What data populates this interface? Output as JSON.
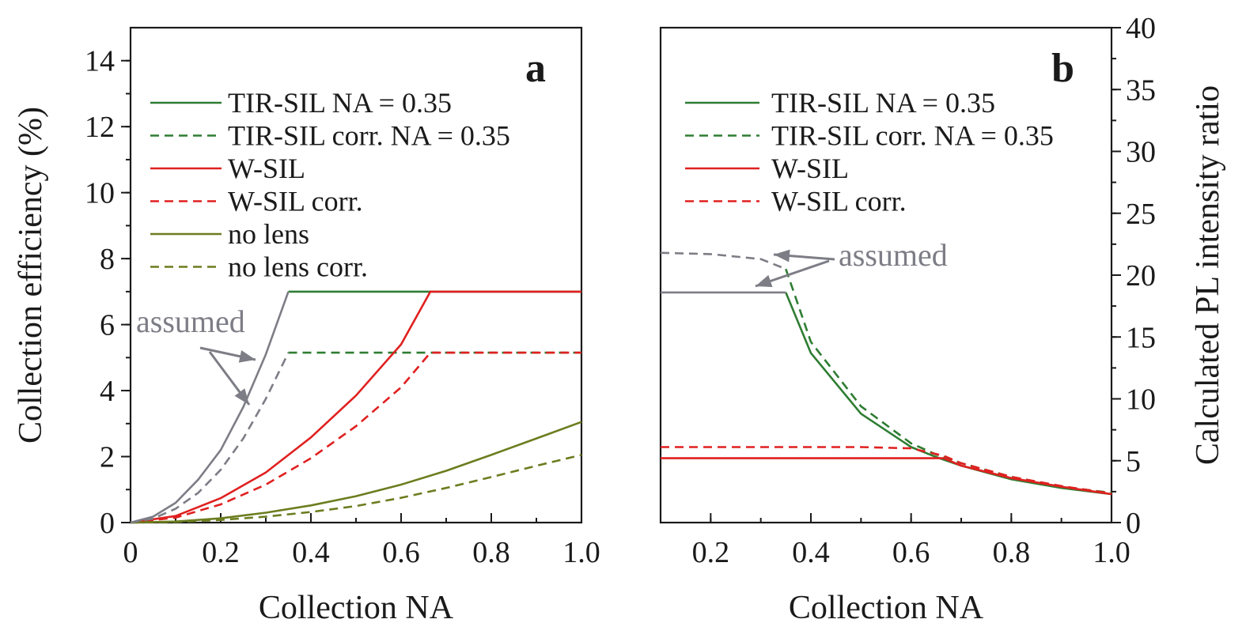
{
  "chart_data": [
    {
      "type": "line",
      "panel_tag": "a",
      "xlabel": "Collection NA",
      "ylabel": "Collection efficiency (%)",
      "xlim": [
        0,
        1.0
      ],
      "ylim": [
        0,
        15
      ],
      "xticks": [
        "0",
        "0.2",
        "0.4",
        "0.6",
        "0.8",
        "1.0"
      ],
      "xtick_values": [
        0,
        0.2,
        0.4,
        0.6,
        0.8,
        1.0
      ],
      "yticks": [
        "0",
        "2",
        "4",
        "6",
        "8",
        "10",
        "12",
        "14"
      ],
      "ytick_values": [
        0,
        2,
        4,
        6,
        8,
        10,
        12,
        14
      ],
      "legend_position": "top-left",
      "annotation": "assumed",
      "series": [
        {
          "name": "TIR-SIL NA = 0.35",
          "color": "#2e7d32",
          "dash": false,
          "in_legend": true,
          "x": [
            0.35,
            1.0
          ],
          "y": [
            7.0,
            7.0
          ]
        },
        {
          "name": "TIR-SIL corr. NA = 0.35",
          "color": "#2e7d32",
          "dash": true,
          "in_legend": true,
          "x": [
            0.35,
            1.0
          ],
          "y": [
            5.15,
            5.15
          ]
        },
        {
          "name": "W-SIL",
          "color": "#e02020",
          "dash": false,
          "in_legend": true,
          "x": [
            0,
            0.1,
            0.2,
            0.3,
            0.4,
            0.5,
            0.6,
            0.665,
            0.7,
            0.8,
            0.9,
            1.0
          ],
          "y": [
            0,
            0.2,
            0.74,
            1.52,
            2.58,
            3.85,
            5.4,
            7.0,
            7.0,
            7.0,
            7.0,
            7.0
          ]
        },
        {
          "name": "W-SIL corr.",
          "color": "#e02020",
          "dash": true,
          "in_legend": true,
          "x": [
            0,
            0.1,
            0.2,
            0.3,
            0.4,
            0.5,
            0.6,
            0.665,
            0.7,
            0.8,
            0.9,
            1.0
          ],
          "y": [
            0,
            0.15,
            0.55,
            1.15,
            1.95,
            2.92,
            4.1,
            5.15,
            5.15,
            5.15,
            5.15,
            5.15
          ]
        },
        {
          "name": "no lens",
          "color": "#6b7d1f",
          "dash": false,
          "in_legend": true,
          "x": [
            0,
            0.1,
            0.2,
            0.3,
            0.4,
            0.5,
            0.6,
            0.7,
            0.8,
            0.9,
            1.0
          ],
          "y": [
            0,
            0.03,
            0.13,
            0.3,
            0.52,
            0.8,
            1.15,
            1.57,
            2.05,
            2.55,
            3.05
          ]
        },
        {
          "name": "no lens corr.",
          "color": "#6b7d1f",
          "dash": true,
          "in_legend": true,
          "x": [
            0,
            0.1,
            0.2,
            0.3,
            0.4,
            0.5,
            0.6,
            0.7,
            0.8,
            0.9,
            1.0
          ],
          "y": [
            0,
            0.02,
            0.08,
            0.18,
            0.32,
            0.5,
            0.75,
            1.05,
            1.38,
            1.72,
            2.05
          ]
        },
        {
          "name": "",
          "color": "#7d7d86",
          "dash": false,
          "in_legend": false,
          "x": [
            0,
            0.05,
            0.1,
            0.15,
            0.2,
            0.25,
            0.3,
            0.35
          ],
          "y": [
            0,
            0.18,
            0.6,
            1.3,
            2.2,
            3.5,
            5.1,
            7.0
          ]
        },
        {
          "name": "",
          "color": "#7d7d86",
          "dash": true,
          "in_legend": false,
          "x": [
            0,
            0.05,
            0.1,
            0.15,
            0.2,
            0.25,
            0.3,
            0.35
          ],
          "y": [
            0,
            0.12,
            0.42,
            0.9,
            1.6,
            2.55,
            3.75,
            5.15
          ]
        }
      ]
    },
    {
      "type": "line",
      "panel_tag": "b",
      "xlabel": "Collection NA",
      "ylabel": "Calculated PL intensity ratio",
      "xlim": [
        0.1,
        1.0
      ],
      "ylim": [
        0,
        40
      ],
      "xticks": [
        "0.2",
        "0.4",
        "0.6",
        "0.8",
        "1.0"
      ],
      "xtick_values": [
        0.2,
        0.4,
        0.6,
        0.8,
        1.0
      ],
      "yticks": [
        "0",
        "5",
        "10",
        "15",
        "20",
        "25",
        "30",
        "35",
        "40"
      ],
      "ytick_values": [
        0,
        5,
        10,
        15,
        20,
        25,
        30,
        35,
        40
      ],
      "yaxis_side": "right",
      "legend_position": "top-left",
      "annotation": "assumed",
      "series": [
        {
          "name": "TIR-SIL NA = 0.35",
          "color": "#2e7d32",
          "dash": false,
          "in_legend": true,
          "x": [
            0.35,
            0.4,
            0.5,
            0.6,
            0.65,
            0.7,
            0.8,
            0.9,
            1.0
          ],
          "y": [
            18.6,
            13.7,
            8.8,
            6.1,
            5.3,
            4.6,
            3.5,
            2.8,
            2.3
          ]
        },
        {
          "name": "TIR-SIL corr. NA = 0.35",
          "color": "#2e7d32",
          "dash": true,
          "in_legend": true,
          "x": [
            0.35,
            0.4,
            0.5,
            0.6,
            0.65,
            0.7,
            0.8,
            0.9,
            1.0
          ],
          "y": [
            20.5,
            14.6,
            9.4,
            6.4,
            5.5,
            4.8,
            3.7,
            2.9,
            2.4
          ]
        },
        {
          "name": "W-SIL",
          "color": "#e02020",
          "dash": false,
          "in_legend": true,
          "x": [
            0.1,
            0.3,
            0.5,
            0.665,
            0.7,
            0.8,
            0.9,
            1.0
          ],
          "y": [
            5.2,
            5.2,
            5.2,
            5.2,
            4.6,
            3.6,
            2.9,
            2.3
          ]
        },
        {
          "name": "W-SIL corr.",
          "color": "#e02020",
          "dash": true,
          "in_legend": true,
          "x": [
            0.1,
            0.3,
            0.5,
            0.6,
            0.665,
            0.7,
            0.8,
            0.9,
            1.0
          ],
          "y": [
            6.1,
            6.1,
            6.1,
            6.0,
            5.4,
            4.8,
            3.7,
            2.95,
            2.35
          ]
        },
        {
          "name": "",
          "color": "#7d7d86",
          "dash": false,
          "in_legend": false,
          "x": [
            0.1,
            0.2,
            0.3,
            0.35
          ],
          "y": [
            18.6,
            18.6,
            18.6,
            18.6
          ]
        },
        {
          "name": "",
          "color": "#7d7d86",
          "dash": true,
          "in_legend": false,
          "x": [
            0.1,
            0.2,
            0.3,
            0.35
          ],
          "y": [
            21.8,
            21.7,
            21.3,
            20.5
          ]
        }
      ]
    }
  ],
  "annotation_color": "#7d7d86"
}
